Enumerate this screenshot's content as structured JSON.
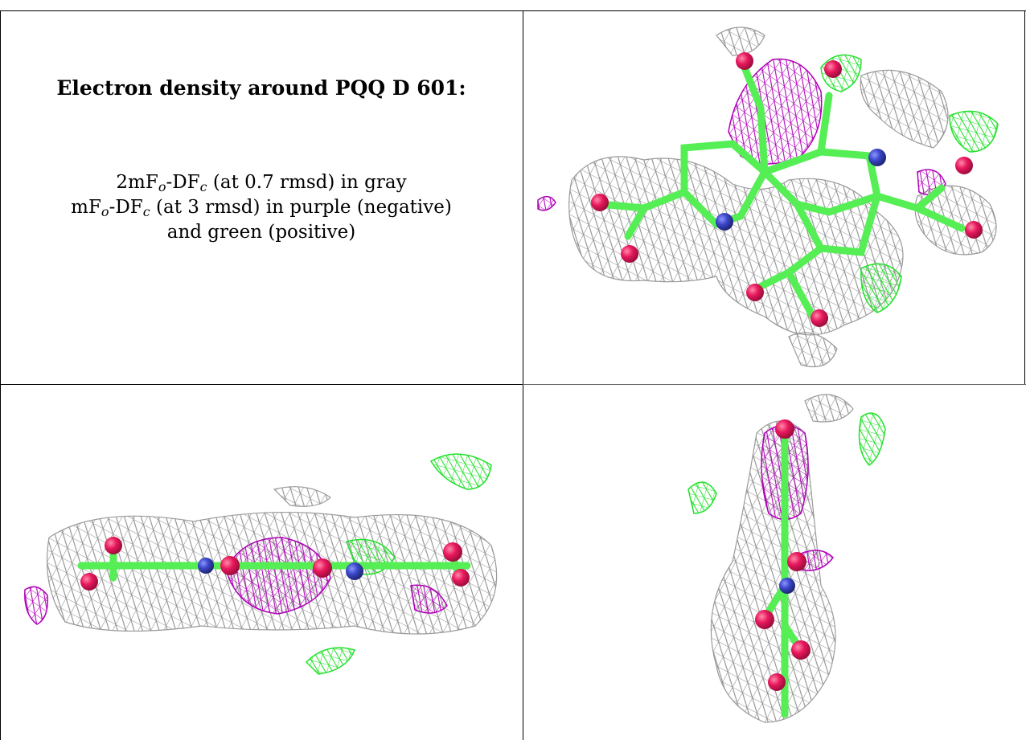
{
  "caption": {
    "title": "Electron density around PQQ D 601:",
    "line1": {
      "prefix": "2mF",
      "sub1": "o",
      "mid": "-DF",
      "sub2": "c",
      "suffix": " (at 0.7 rmsd) in gray"
    },
    "line2": {
      "prefix": "mF",
      "sub1": "o",
      "mid": "-DF",
      "sub2": "c",
      "suffix": " (at 3 rmsd) in purple (negative)"
    },
    "line3": "and green (positive)"
  },
  "colors": {
    "mesh_2fofc": "#8c8c8c",
    "mesh_negative": "#b000b8",
    "mesh_positive": "#22e02a",
    "carbon": "#55ee55",
    "oxygen": "#e8175d",
    "nitrogen": "#3a45c8"
  },
  "panels": [
    {
      "view": "top view"
    },
    {
      "view": "side view"
    },
    {
      "view": "end-on view"
    }
  ]
}
